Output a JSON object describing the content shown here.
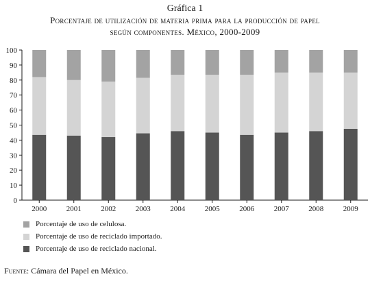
{
  "figure_label": "Gráfica 1",
  "title_line1": "Porcentaje de utilización de materia prima para la producción de papel",
  "title_line2": "según componentes. México, 2000-2009",
  "source_label": "Fuente:",
  "source_text": " Cámara del Papel en México.",
  "chart_data": {
    "type": "bar",
    "stacked": true,
    "title": "Porcentaje de utilización de materia prima para la producción de papel según componentes. México, 2000-2009",
    "xlabel": "",
    "ylabel": "",
    "ylim": [
      0,
      100
    ],
    "yticks": [
      0,
      10,
      20,
      30,
      40,
      50,
      60,
      70,
      80,
      90,
      100
    ],
    "grid": false,
    "legend_position": "bottom-left",
    "categories": [
      "2000",
      "2001",
      "2002",
      "2003",
      "2004",
      "2005",
      "2006",
      "2007",
      "2008",
      "2009"
    ],
    "series": [
      {
        "name": "Porcentaje de uso de reciclado nacional.",
        "color": "#555555",
        "values": [
          43.5,
          43,
          42,
          44.5,
          46,
          45,
          43.5,
          45,
          46,
          47.5
        ]
      },
      {
        "name": "Porcentaje de uso de reciclado importado.",
        "color": "#d4d4d4",
        "values": [
          38.5,
          37,
          37,
          37,
          37.5,
          38.5,
          40,
          40,
          39,
          37.5
        ]
      },
      {
        "name": "Porcentaje de uso de celulosa.",
        "color": "#a3a3a3",
        "values": [
          18,
          20,
          21,
          18.5,
          16.5,
          16.5,
          16.5,
          15,
          15,
          15
        ]
      }
    ],
    "legend_order": [
      2,
      1,
      0
    ]
  }
}
